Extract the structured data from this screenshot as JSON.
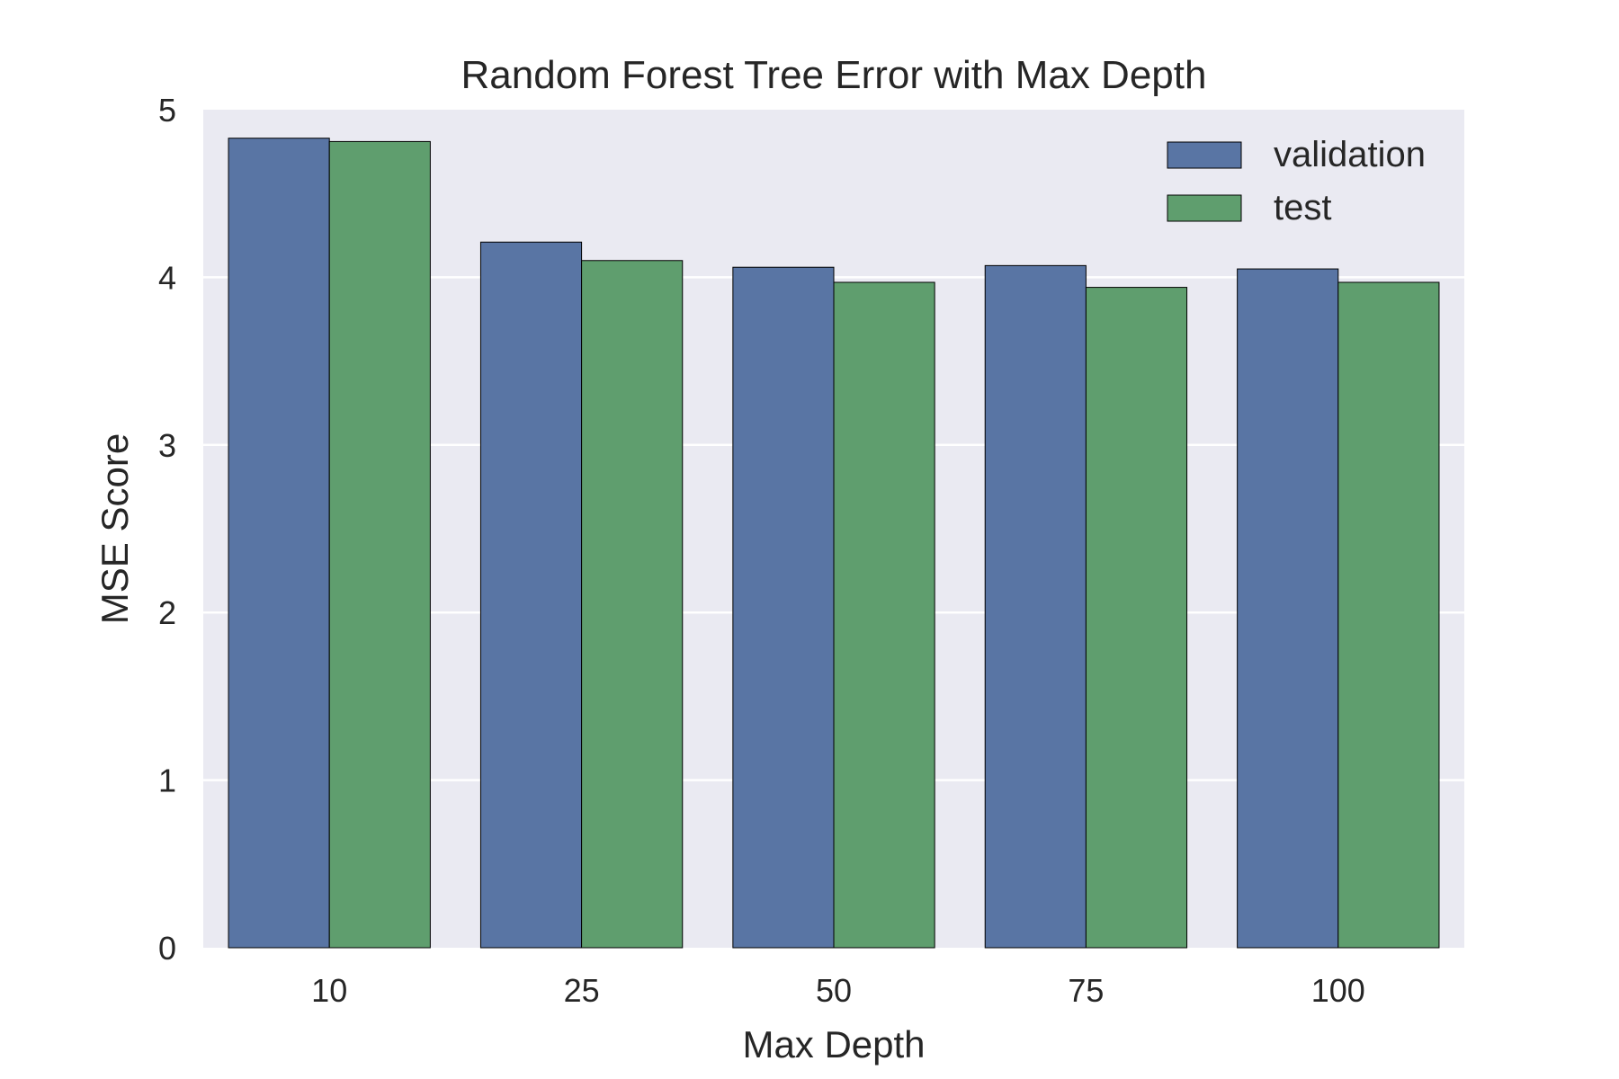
{
  "chart_data": {
    "type": "bar",
    "title": "Random Forest Tree Error with Max Depth",
    "xlabel": "Max Depth",
    "ylabel": "MSE Score",
    "categories": [
      "10",
      "25",
      "50",
      "75",
      "100"
    ],
    "series": [
      {
        "name": "validation",
        "color": "#5975a4",
        "values": [
          4.83,
          4.21,
          4.06,
          4.07,
          4.05
        ]
      },
      {
        "name": "test",
        "color": "#5f9e6e",
        "values": [
          4.81,
          4.1,
          3.97,
          3.94,
          3.97
        ]
      }
    ],
    "ylim": [
      0,
      5
    ],
    "yticks": [
      0,
      1,
      2,
      3,
      4,
      5
    ],
    "grid": true,
    "legend_position": "top-right",
    "background_color": "#eaeaf2",
    "grid_color": "#ffffff"
  }
}
